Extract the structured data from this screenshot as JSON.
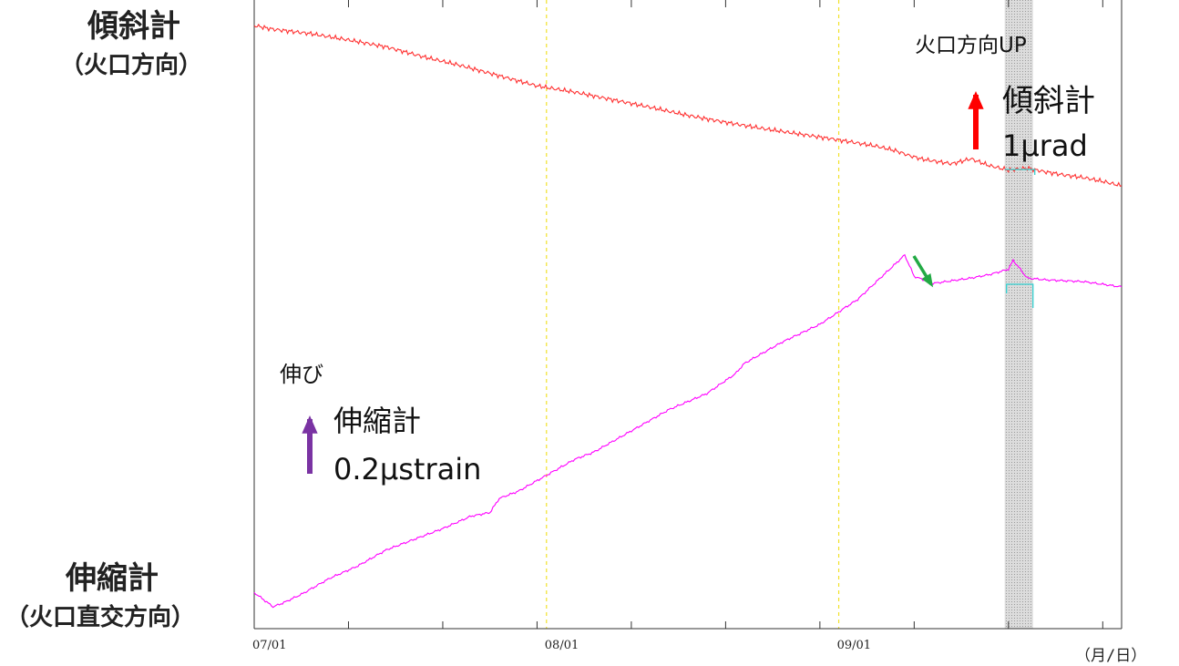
{
  "labels": {
    "tilt_title": "傾斜計",
    "tilt_direction": "（火口方向）",
    "ext_title": "伸縮計",
    "ext_direction": "（火口直交方向）"
  },
  "chart_data": {
    "type": "line",
    "x_ticks": [
      "07/01",
      "08/01",
      "09/01"
    ],
    "x_unit": "（月/日）",
    "xlim_days": [
      0,
      92
    ],
    "shaded_period_days": [
      79.6,
      82.6
    ],
    "monthly_gridline_days": [
      31,
      62
    ],
    "series": [
      {
        "name": "傾斜計",
        "color": "#ff3030",
        "x": [
          0,
          2,
          6,
          10,
          14,
          18,
          22,
          26,
          30,
          34,
          38,
          42,
          46,
          50,
          54,
          58,
          62,
          66,
          68,
          69.5,
          71,
          74,
          76,
          78,
          80,
          82,
          84,
          86,
          88,
          90,
          92
        ],
        "y": [
          0.0,
          -0.06,
          -0.13,
          -0.23,
          -0.34,
          -0.5,
          -0.64,
          -0.8,
          -0.96,
          -1.06,
          -1.18,
          -1.3,
          -1.43,
          -1.54,
          -1.64,
          -1.73,
          -1.82,
          -1.92,
          -1.99,
          -2.07,
          -2.13,
          -2.2,
          -2.12,
          -2.23,
          -2.3,
          -2.27,
          -2.33,
          -2.38,
          -2.42,
          -2.48,
          -2.55
        ]
      },
      {
        "name": "伸縮計",
        "color": "#ff00ff",
        "x": [
          0,
          1,
          2,
          3,
          5,
          8,
          11,
          14,
          17,
          20,
          23,
          25,
          26,
          27,
          28,
          31,
          34,
          36,
          40,
          44,
          48,
          51,
          52,
          56,
          60,
          64,
          66,
          68,
          69,
          70,
          72,
          76,
          78,
          80,
          80.5,
          82,
          84,
          88,
          92
        ],
        "y": [
          0.08,
          0.04,
          0.0,
          0.02,
          0.07,
          0.16,
          0.23,
          0.32,
          0.38,
          0.44,
          0.51,
          0.53,
          0.61,
          0.63,
          0.65,
          0.74,
          0.83,
          0.87,
          0.99,
          1.11,
          1.2,
          1.31,
          1.37,
          1.49,
          1.59,
          1.73,
          1.83,
          1.93,
          1.98,
          1.86,
          1.82,
          1.85,
          1.87,
          1.9,
          1.95,
          1.85,
          1.84,
          1.83,
          1.8
        ]
      }
    ],
    "annotations": {
      "crater_up": "火口方向UP",
      "tilt_scale_name": "傾斜計",
      "tilt_scale_value": "1μrad",
      "ext_up": "伸び",
      "ext_scale_name": "伸縮計",
      "ext_scale_value": "0.2μstrain"
    },
    "arrow_colors": {
      "tilt": "#ff0000",
      "ext": "#7a33a3",
      "event": "#22aa44"
    },
    "grid": false
  }
}
